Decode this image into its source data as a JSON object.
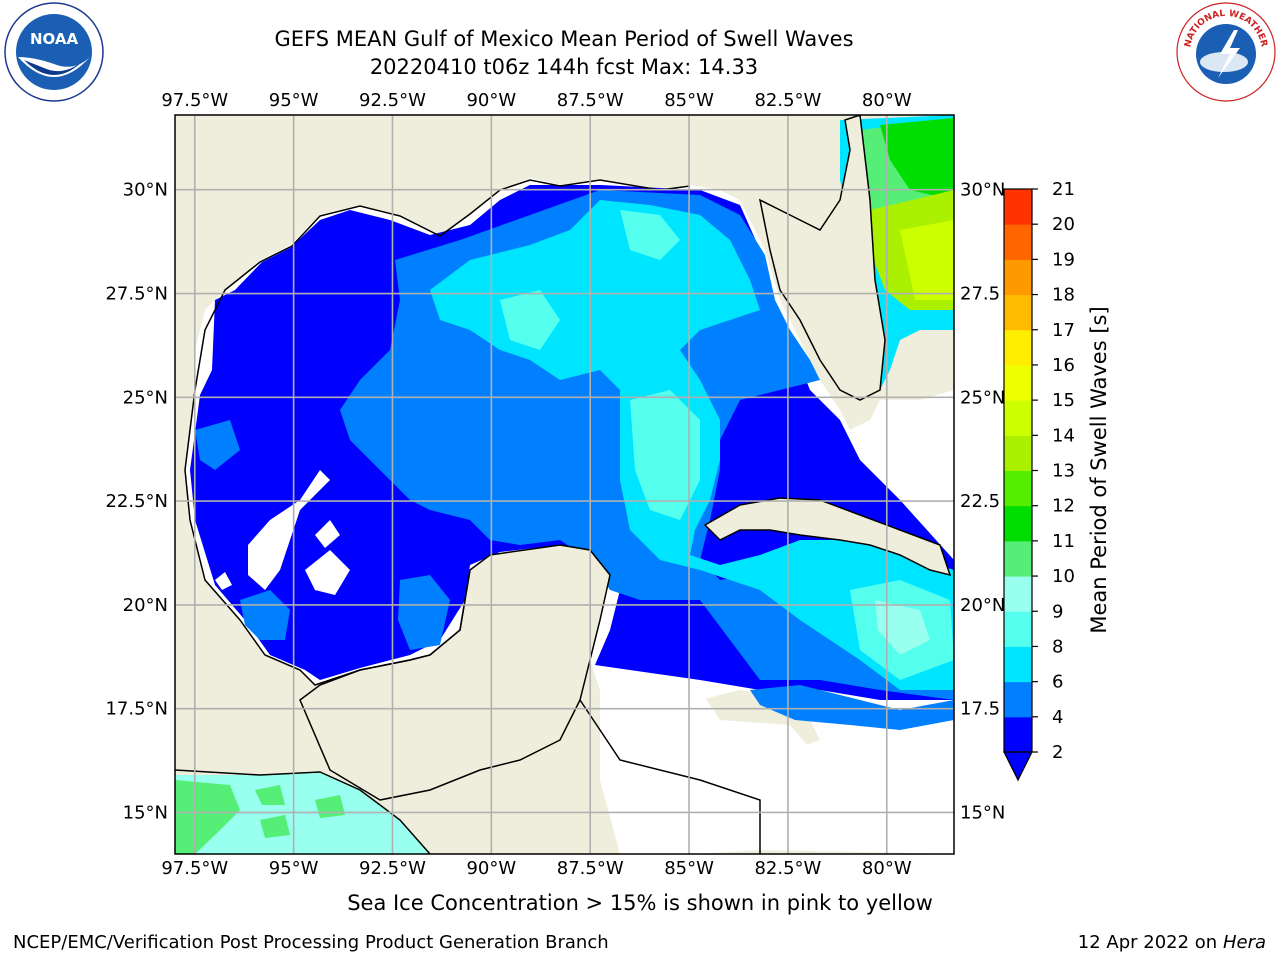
{
  "title_line1": "GEFS MEAN Gulf of Mexico Mean Period of Swell Waves",
  "title_line2": "20220410 t06z 144h fcst   Max: 14.33",
  "subtitle": "Sea Ice Concentration > 15% is shown in pink to yellow",
  "footer_left": "NCEP/EMC/Verification Post Processing Product Generation Branch",
  "footer_right_date": "12 Apr 2022 on ",
  "footer_right_host": "Hera",
  "logos": {
    "left": "noaa-logo",
    "right": "nws-logo",
    "noaa_text": "NOAA",
    "nws_text": "NATIONAL WEATHER SERVICE"
  },
  "map": {
    "lon_labels": [
      "97.5°W",
      "95°W",
      "92.5°W",
      "90°W",
      "87.5°W",
      "85°W",
      "82.5°W",
      "80°W"
    ],
    "lat_labels_left": [
      "30°N",
      "27.5°N",
      "25°N",
      "22.5°N",
      "20°N",
      "17.5°N",
      "15°N"
    ],
    "lat_labels_right": [
      "30°N",
      "27.5",
      "25°N",
      "22.5",
      "20°N",
      "17.5",
      "15°N"
    ],
    "lon_values": [
      -97.5,
      -95,
      -92.5,
      -90,
      -87.5,
      -85,
      -82.5,
      -80
    ],
    "lat_values": [
      30,
      27.5,
      25,
      22.5,
      20,
      17.5,
      15
    ],
    "extent": {
      "lon_min": -98,
      "lon_max": -78.3,
      "lat_min": 14,
      "lat_max": 31.8
    },
    "land_color": "#efeedc",
    "grid_color": "#b0b0b0"
  },
  "colorbar": {
    "label": "Mean Period of Swell Waves [s]",
    "ticks": [
      "2",
      "4",
      "6",
      "8",
      "9",
      "10",
      "11",
      "12",
      "13",
      "14",
      "15",
      "16",
      "17",
      "18",
      "19",
      "20",
      "21"
    ],
    "colors": [
      "#0000ff",
      "#0080ff",
      "#00e5ff",
      "#55ffee",
      "#99ffee",
      "#55ee77",
      "#00dd00",
      "#55ee00",
      "#aaf000",
      "#ccff00",
      "#eeff00",
      "#ffee00",
      "#ffbb00",
      "#ff9900",
      "#ff6600",
      "#ff3300"
    ],
    "extend_color": "#0000ff"
  }
}
